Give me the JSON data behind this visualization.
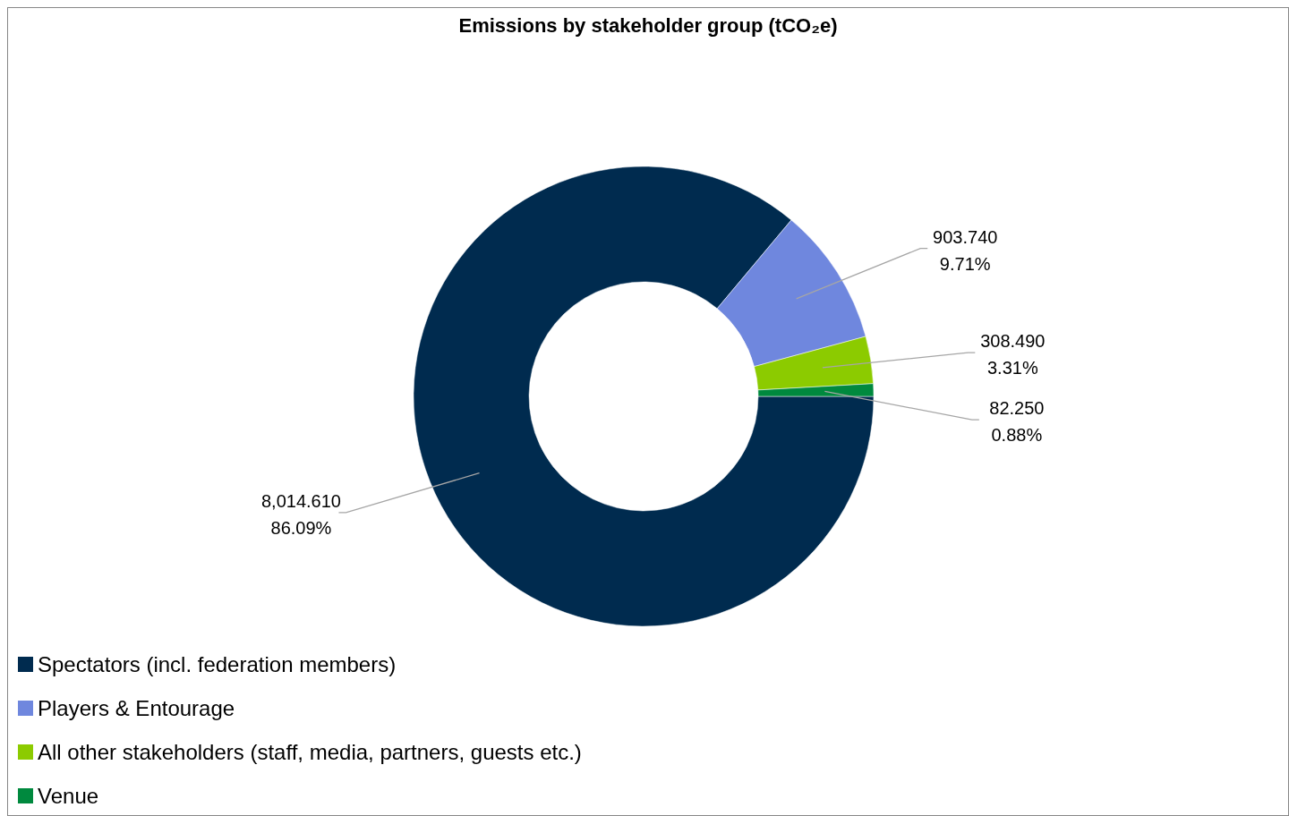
{
  "chart_data": {
    "type": "donut",
    "title": "Emissions by stakeholder group (tCO₂e)",
    "categories": [
      "Spectators (incl. federation members)",
      "Players & Entourage",
      "All other stakeholders (staff, media, partners, guests etc.)",
      "Venue"
    ],
    "values": [
      8014.61,
      903.74,
      308.49,
      82.25
    ],
    "colors": [
      "#002b4f",
      "#6f87de",
      "#8ccb00",
      "#00893e"
    ],
    "value_labels": [
      "8,014.610\n86.09%",
      "903.740\n9.71%",
      "308.490\n3.31%",
      "82.250\n0.88%"
    ],
    "legend": "bottom left"
  }
}
